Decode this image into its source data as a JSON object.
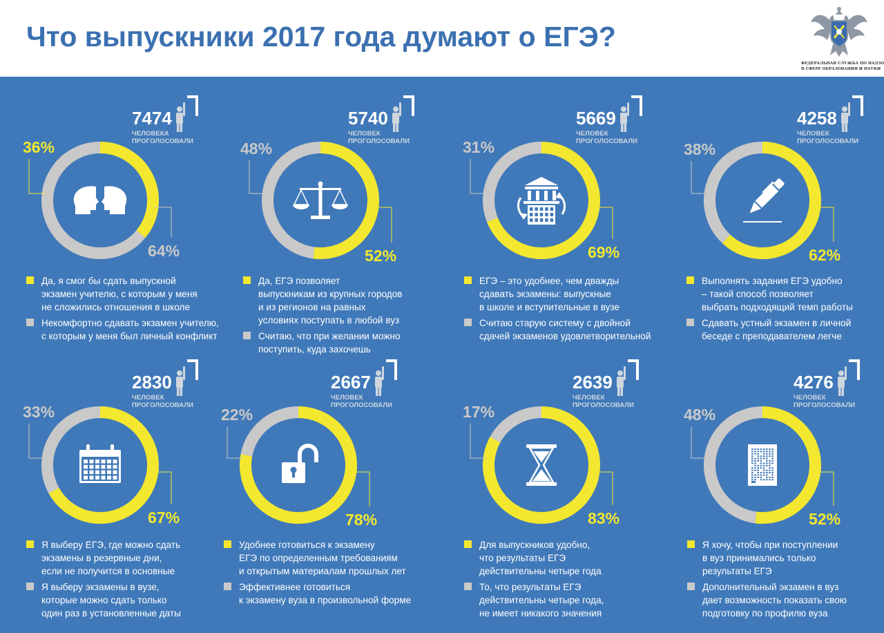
{
  "header": {
    "title": "Что выпускники 2017 года думают о ЕГЭ?",
    "org_line1": "ФЕДЕРАЛЬНАЯ СЛУЖБА ПО НАДЗОРУ",
    "org_line2": "В СФЕРЕ ОБРАЗОВАНИЯ И НАУКИ"
  },
  "colors": {
    "background": "#4079b9",
    "title": "#3b70b0",
    "yes": "#f3e82f",
    "no": "#c9c9c9",
    "text": "#ffffff"
  },
  "chart_data": [
    {
      "type": "pie",
      "icon": "heads-icon",
      "votes": "7474",
      "votes_label_1": "ЧЕЛОВЕКА",
      "votes_label_2": "ПРОГОЛОСОВАЛИ",
      "slices": [
        {
          "label_lines": [
            "Да, я смог бы сдать выпускной",
            "экзамен учителю, с которым у меня",
            "не сложились отношения в школе"
          ],
          "value": 36,
          "pct": "36%"
        },
        {
          "label_lines": [
            "Некомфортно сдавать экзамен учителю,",
            "с которым у меня был личный конфликт"
          ],
          "value": 64,
          "pct": "64%"
        }
      ]
    },
    {
      "type": "pie",
      "icon": "scales-icon",
      "votes": "5740",
      "votes_label_1": "ЧЕЛОВЕК",
      "votes_label_2": "ПРОГОЛОСОВАЛИ",
      "slices": [
        {
          "label_lines": [
            "Да, ЕГЭ позволяет",
            "выпускникам из крупных городов",
            "и из регионов на равных",
            "условиях поступать в любой вуз"
          ],
          "value": 52,
          "pct": "52%"
        },
        {
          "label_lines": [
            "Считаю, что при желании можно",
            "поступить, куда захочешь"
          ],
          "value": 48,
          "pct": "48%"
        }
      ]
    },
    {
      "type": "pie",
      "icon": "university-icon",
      "votes": "5669",
      "votes_label_1": "ЧЕЛОВЕК",
      "votes_label_2": "ПРОГОЛОСОВАЛИ",
      "slices": [
        {
          "label_lines": [
            "ЕГЭ – это удобнее, чем дважды",
            "сдавать экзамены: выпускные",
            "в школе и вступительные в вузе"
          ],
          "value": 69,
          "pct": "69%"
        },
        {
          "label_lines": [
            "Считаю старую систему с двойной",
            "сдачей экзаменов удовлетворительной"
          ],
          "value": 31,
          "pct": "31%"
        }
      ]
    },
    {
      "type": "pie",
      "icon": "pen-icon",
      "votes": "4258",
      "votes_label_1": "ЧЕЛОВЕК",
      "votes_label_2": "ПРОГОЛОСОВАЛИ",
      "slices": [
        {
          "label_lines": [
            "Выполнять  задания ЕГЭ удобно",
            "– такой способ позволяет",
            "выбрать подходящий темп работы"
          ],
          "value": 62,
          "pct": "62%"
        },
        {
          "label_lines": [
            "Сдавать устный экзамен в личной",
            "беседе с преподавателем легче"
          ],
          "value": 38,
          "pct": "38%"
        }
      ]
    },
    {
      "type": "pie",
      "icon": "calendar-icon",
      "votes": "2830",
      "votes_label_1": "ЧЕЛОВЕК",
      "votes_label_2": "ПРОГОЛОСОВАЛИ",
      "slices": [
        {
          "label_lines": [
            "Я выберу ЕГЭ, где можно сдать",
            "экзамены в резервные дни,",
            "если не получится в основные"
          ],
          "value": 67,
          "pct": "67%"
        },
        {
          "label_lines": [
            "Я выберу экзамены в вузе,",
            "которые можно сдать только",
            "один раз в установленные даты"
          ],
          "value": 33,
          "pct": "33%"
        }
      ]
    },
    {
      "type": "pie",
      "icon": "open-lock-icon",
      "votes": "2667",
      "votes_label_1": "ЧЕЛОВЕК",
      "votes_label_2": "ПРОГОЛОСОВАЛИ",
      "slices": [
        {
          "label_lines": [
            "Удобнее готовиться к экзамену",
            "ЕГЭ по определенным требованиям",
            "и открытым материалам прошлых лет"
          ],
          "value": 78,
          "pct": "78%"
        },
        {
          "label_lines": [
            "Эффективнее готовиться",
            "к экзамену вуза в произвольной форме"
          ],
          "value": 22,
          "pct": "22%"
        }
      ]
    },
    {
      "type": "pie",
      "icon": "hourglass-icon",
      "votes": "2639",
      "votes_label_1": "ЧЕЛОВЕК",
      "votes_label_2": "ПРОГОЛОСОВАЛИ",
      "slices": [
        {
          "label_lines": [
            "Для выпускников удобно,",
            "что результаты ЕГЭ",
            "действительны четыре года"
          ],
          "value": 83,
          "pct": "83%"
        },
        {
          "label_lines": [
            "То, что результаты ЕГЭ",
            "действительны четыре года,",
            "не имеет никакого значения"
          ],
          "value": 17,
          "pct": "17%"
        }
      ]
    },
    {
      "type": "pie",
      "icon": "answer-sheet-icon",
      "votes": "4276",
      "votes_label_1": "ЧЕЛОВЕК",
      "votes_label_2": "ПРОГОЛОСОВАЛИ",
      "slices": [
        {
          "label_lines": [
            "Я хочу, чтобы при поступлении",
            "в вуз принимались только",
            "результаты ЕГЭ"
          ],
          "value": 52,
          "pct": "52%"
        },
        {
          "label_lines": [
            "Дополнительный экзамен в вуз",
            "дает возможность показать свою",
            "подготовку по профилю вуза"
          ],
          "value": 48,
          "pct": "48%"
        }
      ]
    }
  ]
}
